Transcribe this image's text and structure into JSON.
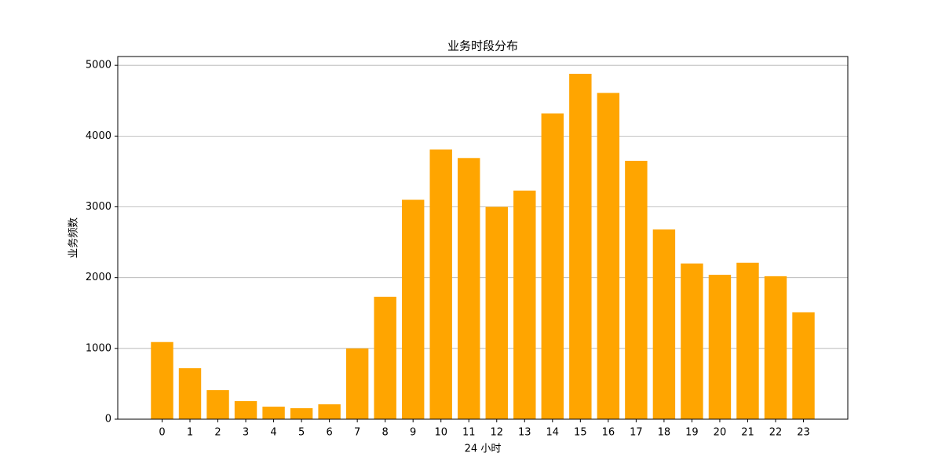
{
  "chart_data": {
    "type": "bar",
    "title": "业务时段分布",
    "x_label": "24 小时",
    "y_label": "业务频数",
    "x": [
      0,
      1,
      2,
      3,
      4,
      5,
      6,
      7,
      8,
      9,
      10,
      11,
      12,
      13,
      14,
      15,
      16,
      17,
      18,
      19,
      20,
      21,
      22,
      23
    ],
    "values": [
      1090,
      720,
      410,
      255,
      177,
      155,
      210,
      1000,
      1730,
      3100,
      3810,
      3690,
      3000,
      3230,
      4320,
      4880,
      4610,
      3650,
      2680,
      2200,
      2040,
      2210,
      2020,
      1510
    ],
    "color": "#ffa500",
    "bar_width": 0.8,
    "xlim": [
      -1.59,
      24.59
    ],
    "xticks": [
      0,
      1,
      2,
      3,
      4,
      5,
      6,
      7,
      8,
      9,
      10,
      11,
      12,
      13,
      14,
      15,
      16,
      17,
      18,
      19,
      20,
      21,
      22,
      23
    ],
    "ylim": [
      0,
      5124
    ],
    "yticks": [
      0,
      1000,
      2000,
      3000,
      4000,
      5000
    ],
    "grid": true
  }
}
